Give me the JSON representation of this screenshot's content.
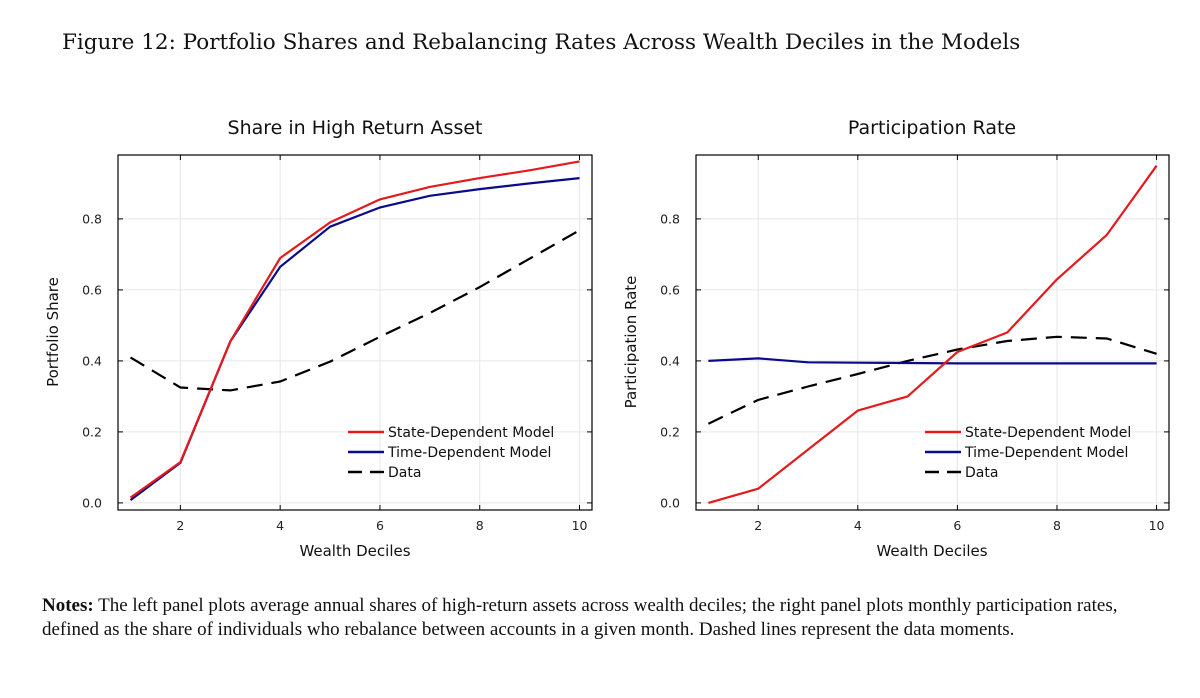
{
  "figure": {
    "title": "Figure 12: Portfolio Shares and Rebalancing Rates Across Wealth Deciles in the Models",
    "notes_label": "Notes:",
    "notes_text": "The left panel plots average annual shares of high-return assets across wealth deciles; the right panel plots monthly participation rates, defined as the share of individuals who rebalance between accounts in a given month. Dashed lines represent the data moments."
  },
  "colors": {
    "state": "#e41a1c",
    "time": "#0a0a8c",
    "data": "#000000"
  },
  "chart_data": [
    {
      "type": "line",
      "title": "Share in High Return Asset",
      "xlabel": "Wealth Deciles",
      "ylabel": "Portfolio Share",
      "xlim": [
        0.75,
        10.25
      ],
      "ylim": [
        -0.02,
        0.98
      ],
      "xticks": [
        2,
        4,
        6,
        8,
        10
      ],
      "yticks": [
        0.0,
        0.2,
        0.4,
        0.6,
        0.8
      ],
      "ytick_labels": [
        "0.0",
        "0.2",
        "0.4",
        "0.6",
        "0.8"
      ],
      "grid": true,
      "legend_position": "bottom-right",
      "x": [
        1,
        2,
        3,
        4,
        5,
        6,
        7,
        8,
        9,
        10
      ],
      "series": [
        {
          "name": "State-Dependent Model",
          "style": "solid",
          "color_key": "state",
          "values": [
            0.015,
            0.115,
            0.455,
            0.69,
            0.79,
            0.855,
            0.89,
            0.915,
            0.937,
            0.962
          ]
        },
        {
          "name": "Time-Dependent Model",
          "style": "solid",
          "color_key": "time",
          "values": [
            0.008,
            0.113,
            0.455,
            0.665,
            0.778,
            0.832,
            0.865,
            0.884,
            0.9,
            0.915
          ]
        },
        {
          "name": "Data",
          "style": "dashed",
          "color_key": "data",
          "values": [
            0.41,
            0.325,
            0.317,
            0.342,
            0.398,
            0.468,
            0.535,
            0.608,
            0.688,
            0.768
          ]
        }
      ]
    },
    {
      "type": "line",
      "title": "Participation Rate",
      "xlabel": "Wealth Deciles",
      "ylabel": "Participation Rate",
      "xlim": [
        0.75,
        10.25
      ],
      "ylim": [
        -0.02,
        0.98
      ],
      "xticks": [
        2,
        4,
        6,
        8,
        10
      ],
      "yticks": [
        0.0,
        0.2,
        0.4,
        0.6,
        0.8
      ],
      "ytick_labels": [
        "0.0",
        "0.2",
        "0.4",
        "0.6",
        "0.8"
      ],
      "grid": true,
      "legend_position": "bottom-right",
      "x": [
        1,
        2,
        3,
        4,
        5,
        6,
        7,
        8,
        9,
        10
      ],
      "series": [
        {
          "name": "State-Dependent Model",
          "style": "solid",
          "color_key": "state",
          "values": [
            0.0,
            0.04,
            0.15,
            0.26,
            0.3,
            0.425,
            0.48,
            0.63,
            0.755,
            0.95
          ]
        },
        {
          "name": "Time-Dependent Model",
          "style": "solid",
          "color_key": "time",
          "values": [
            0.4,
            0.407,
            0.396,
            0.395,
            0.394,
            0.393,
            0.393,
            0.393,
            0.393,
            0.393
          ]
        },
        {
          "name": "Data",
          "style": "dashed",
          "color_key": "data",
          "values": [
            0.223,
            0.29,
            0.328,
            0.363,
            0.4,
            0.432,
            0.456,
            0.468,
            0.463,
            0.42
          ]
        }
      ]
    }
  ]
}
